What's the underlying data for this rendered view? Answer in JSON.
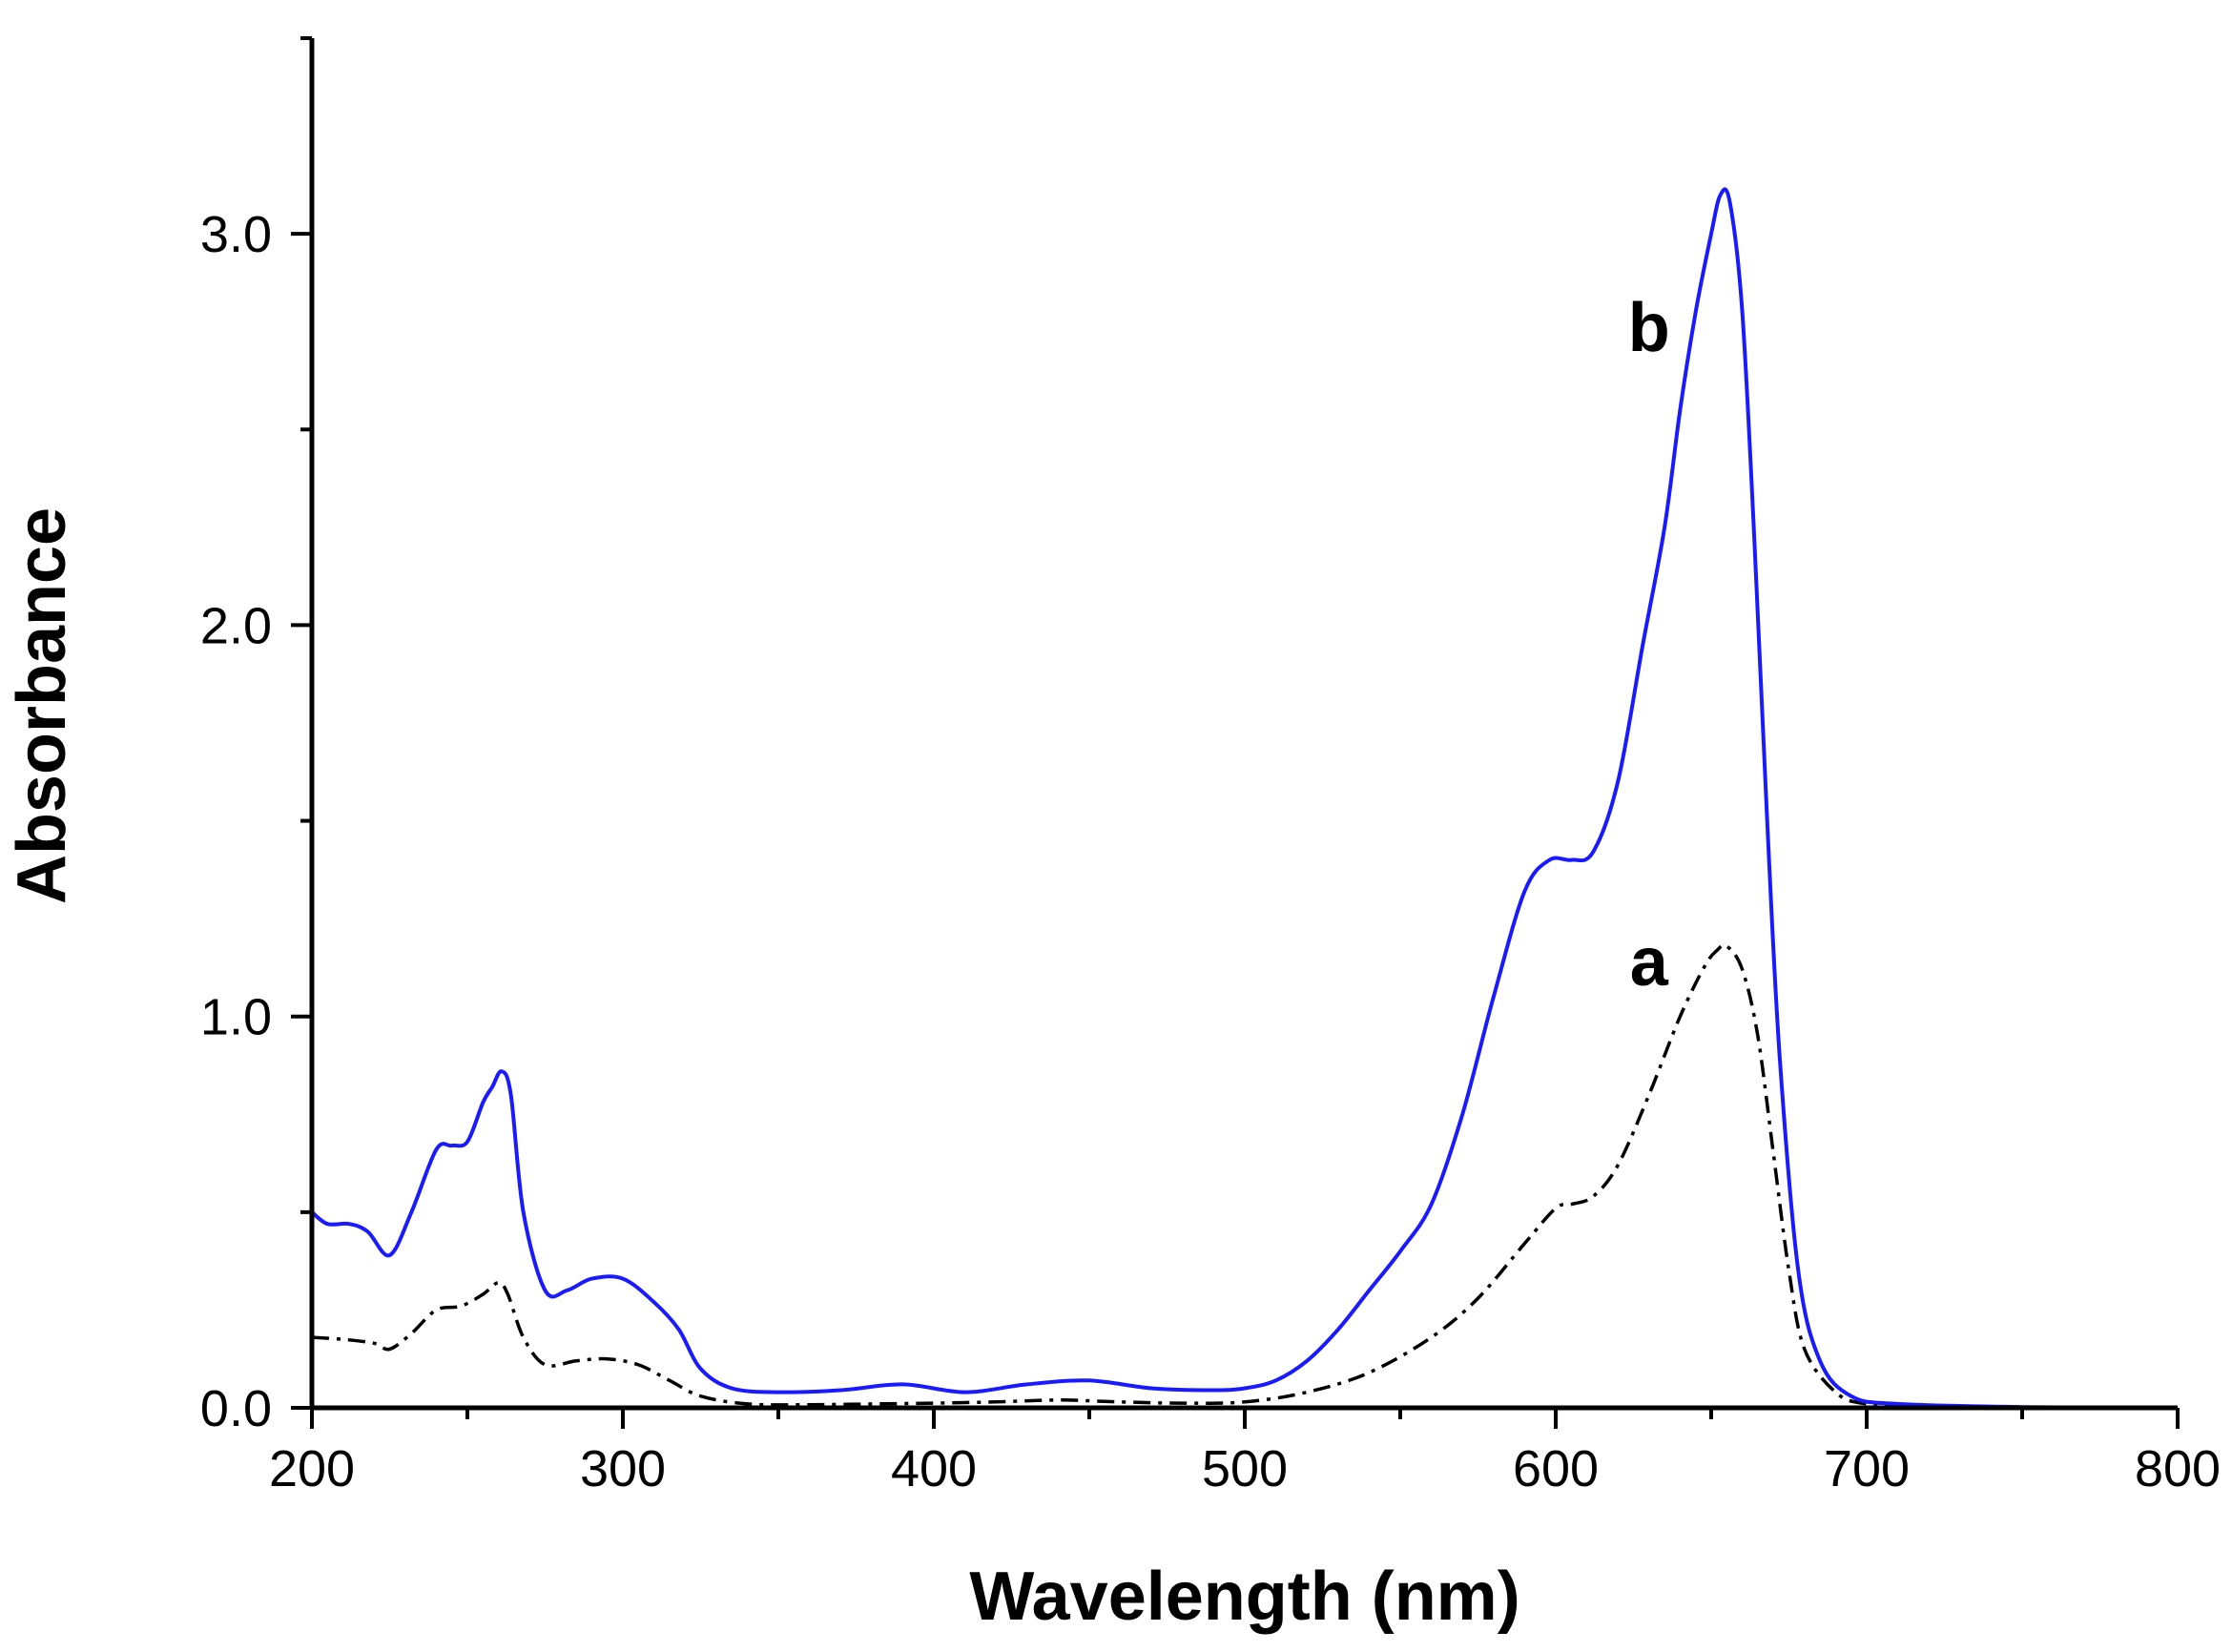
{
  "chart_data": {
    "type": "line",
    "title": "",
    "xlabel": "Wavelength (nm)",
    "ylabel": "Absorbance",
    "xlim": [
      200,
      800
    ],
    "ylim": [
      0,
      3.5
    ],
    "x_ticks": [
      200,
      300,
      400,
      500,
      600,
      700,
      800
    ],
    "x_minor_ticks": [
      250,
      350,
      450,
      550,
      650,
      750
    ],
    "y_ticks": [
      {
        "value": 0.0,
        "label": "0.0"
      },
      {
        "value": 1.0,
        "label": "1.0"
      },
      {
        "value": 2.0,
        "label": "2.0"
      },
      {
        "value": 3.0,
        "label": "3.0"
      }
    ],
    "y_minor_ticks": [
      0.5,
      1.5,
      2.5,
      3.5
    ],
    "grid": false,
    "series": [
      {
        "name": "a",
        "color": "#000000",
        "style": "dash-dot",
        "label_at": [
          630,
          1.08
        ],
        "x": [
          200,
          210,
          220,
          225,
          232,
          240,
          248,
          255,
          260,
          263,
          268,
          275,
          285,
          295,
          305,
          315,
          325,
          340,
          360,
          380,
          400,
          420,
          440,
          460,
          480,
          500,
          520,
          540,
          560,
          575,
          590,
          600,
          605,
          612,
          620,
          630,
          640,
          648,
          652,
          655,
          660,
          665,
          670,
          675,
          680,
          690,
          700,
          720,
          750,
          800
        ],
        "y": [
          0.18,
          0.175,
          0.165,
          0.15,
          0.19,
          0.25,
          0.26,
          0.29,
          0.32,
          0.29,
          0.18,
          0.11,
          0.12,
          0.125,
          0.11,
          0.07,
          0.03,
          0.01,
          0.008,
          0.01,
          0.012,
          0.015,
          0.02,
          0.015,
          0.012,
          0.015,
          0.04,
          0.09,
          0.18,
          0.28,
          0.42,
          0.51,
          0.52,
          0.54,
          0.62,
          0.8,
          1.0,
          1.13,
          1.17,
          1.18,
          1.12,
          0.95,
          0.65,
          0.35,
          0.15,
          0.04,
          0.01,
          0.003,
          0.001,
          0.0
        ]
      },
      {
        "name": "b",
        "color": "#1a1aff",
        "style": "solid",
        "label_at": [
          630,
          2.7
        ],
        "x": [
          200,
          205,
          212,
          218,
          225,
          232,
          240,
          245,
          250,
          255,
          258,
          261,
          264,
          268,
          275,
          282,
          290,
          300,
          310,
          318,
          325,
          335,
          350,
          370,
          390,
          410,
          430,
          450,
          470,
          490,
          500,
          510,
          520,
          530,
          540,
          550,
          560,
          570,
          580,
          590,
          598,
          605,
          612,
          620,
          628,
          635,
          640,
          645,
          650,
          653,
          656,
          660,
          664,
          668,
          672,
          678,
          685,
          695,
          710,
          750,
          800
        ],
        "y": [
          0.5,
          0.47,
          0.47,
          0.45,
          0.39,
          0.5,
          0.66,
          0.67,
          0.68,
          0.78,
          0.82,
          0.86,
          0.8,
          0.5,
          0.3,
          0.3,
          0.33,
          0.33,
          0.27,
          0.2,
          0.1,
          0.05,
          0.04,
          0.045,
          0.06,
          0.04,
          0.06,
          0.07,
          0.05,
          0.045,
          0.05,
          0.07,
          0.12,
          0.2,
          0.3,
          0.4,
          0.52,
          0.75,
          1.05,
          1.32,
          1.4,
          1.4,
          1.42,
          1.6,
          1.95,
          2.25,
          2.55,
          2.8,
          3.0,
          3.1,
          3.08,
          2.8,
          2.2,
          1.5,
          0.9,
          0.35,
          0.12,
          0.03,
          0.01,
          0.002,
          0.0
        ]
      }
    ]
  }
}
